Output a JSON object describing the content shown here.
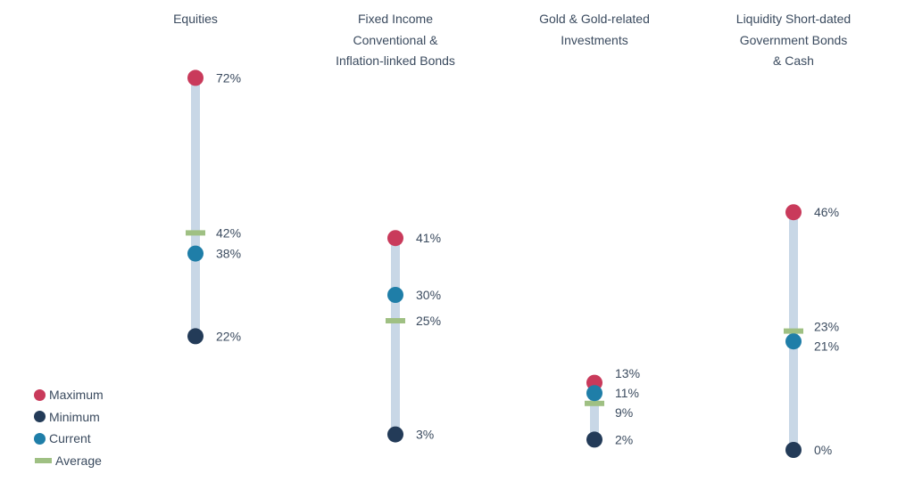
{
  "chart_data": {
    "type": "range-dot",
    "title": "",
    "unit": "%",
    "ylim": [
      0,
      75
    ],
    "categories": [
      {
        "title_lines": [
          "Equities"
        ],
        "maximum": 72,
        "minimum": 22,
        "current": 38,
        "average": 42
      },
      {
        "title_lines": [
          "Fixed Income",
          "Conventional &",
          "Inflation-linked Bonds"
        ],
        "maximum": 41,
        "minimum": 3,
        "current": 30,
        "average": 25
      },
      {
        "title_lines": [
          "Gold & Gold-related",
          "Investments"
        ],
        "maximum": 13,
        "minimum": 2,
        "current": 11,
        "average": 9
      },
      {
        "title_lines": [
          "Liquidity Short-dated",
          "Government Bonds",
          "& Cash"
        ],
        "maximum": 46,
        "minimum": 0,
        "current": 21,
        "average": 23
      }
    ],
    "legend": {
      "placement": "bottom-left",
      "items": [
        {
          "key": "maximum",
          "label": "Maximum",
          "shape": "dot"
        },
        {
          "key": "minimum",
          "label": "Minimum",
          "shape": "dot"
        },
        {
          "key": "current",
          "label": "Current",
          "shape": "dot"
        },
        {
          "key": "average",
          "label": "Average",
          "shape": "bar"
        }
      ]
    },
    "colors": {
      "maximum": "#c93a5b",
      "minimum": "#233b58",
      "current": "#1f7ea8",
      "average": "#9fc083",
      "range": "#c8d7e6",
      "text": "#3b4b5f"
    }
  }
}
